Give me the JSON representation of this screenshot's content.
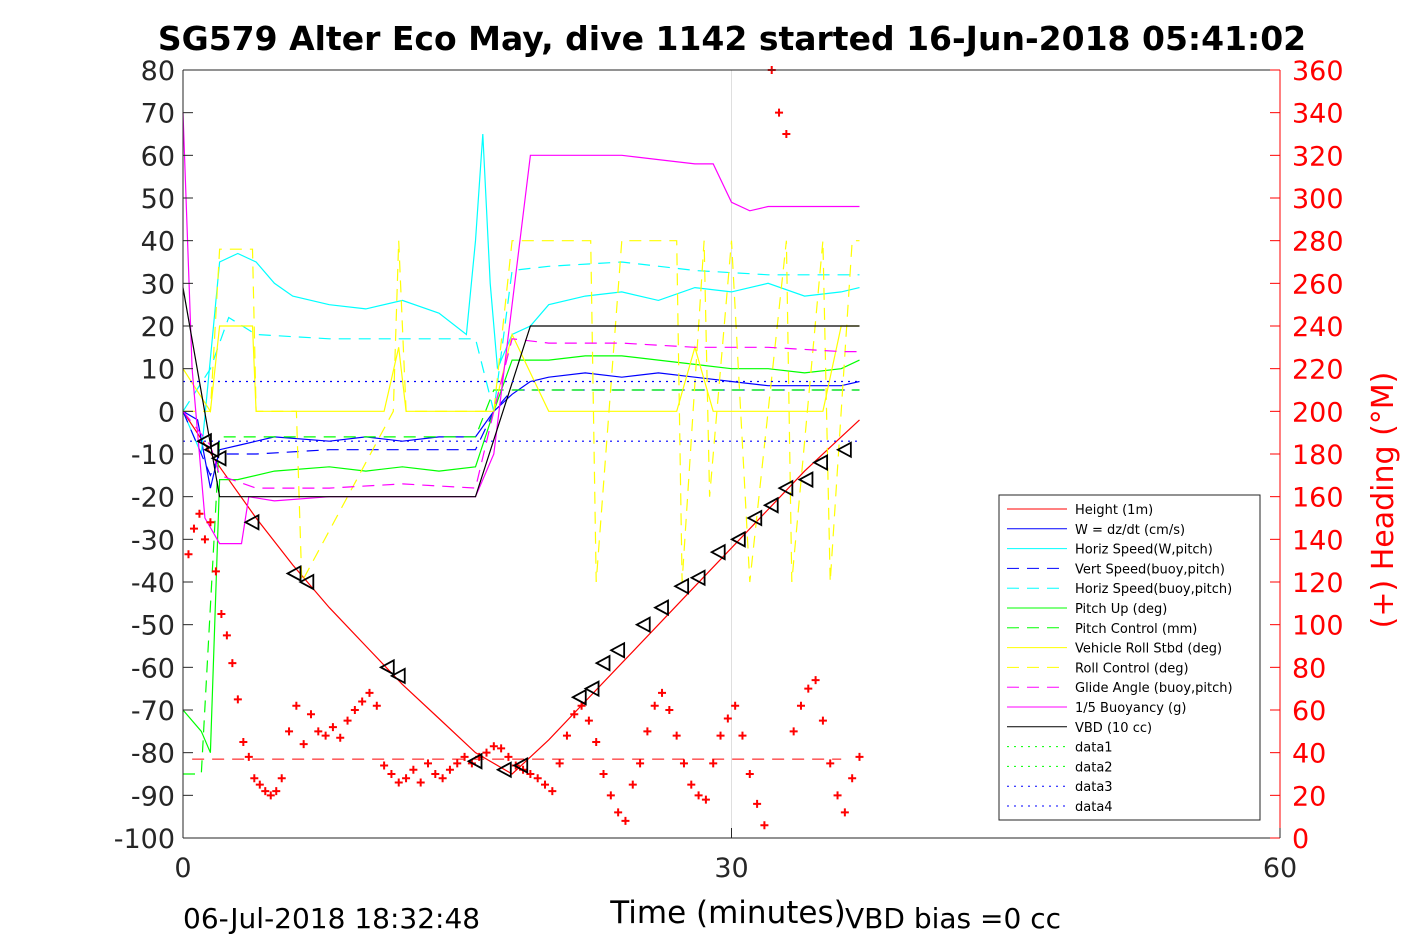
{
  "figure": {
    "title": "SG579 Alter Eco May, dive 1142 started 16-Jun-2018 05:41:02",
    "timestamp_label": "06-Jul-2018 18:32:48",
    "vbd_bias_label": "VBD bias =0 cc"
  },
  "chart_data": {
    "type": "line",
    "title": "SG579 Alter Eco May, dive 1142 started 16-Jun-2018 05:41:02",
    "xlabel": "Time (minutes)",
    "ylabel_left": "",
    "ylabel_right": "(+) Heading (°M)",
    "xlim": [
      0,
      60
    ],
    "ylim_left": [
      -100,
      80
    ],
    "ylim_right": [
      0,
      360
    ],
    "x_ticks": [
      "0",
      "30",
      "60"
    ],
    "y_ticks_left": [
      "80",
      "70",
      "60",
      "50",
      "40",
      "30",
      "20",
      "10",
      "0",
      "-10",
      "-20",
      "-30",
      "-40",
      "-50",
      "-60",
      "-70",
      "-80",
      "-90",
      "-100"
    ],
    "y_ticks_right": [
      "360",
      "340",
      "320",
      "300",
      "280",
      "260",
      "240",
      "220",
      "200",
      "180",
      "160",
      "140",
      "120",
      "100",
      "80",
      "60",
      "40",
      "20",
      "0"
    ],
    "grid": "x-only at 30",
    "legend_position": "lower-right",
    "colors": {
      "axis_right": "#ff0000",
      "background": "#ffffff"
    },
    "series": [
      {
        "name": "Height (1m)",
        "color": "#ff0000",
        "style": "solid",
        "x": [
          0,
          2,
          4,
          6,
          8,
          10,
          12,
          14,
          16,
          18,
          20,
          22,
          24,
          26,
          28,
          30,
          32,
          34,
          36,
          37
        ],
        "y": [
          0,
          -13,
          -25,
          -36,
          -46,
          -55,
          -64,
          -72,
          -80,
          -85,
          -77,
          -68,
          -59,
          -50,
          -41,
          -32,
          -23,
          -14,
          -6,
          -2
        ]
      },
      {
        "name": "W = dz/dt (cm/s)",
        "color": "#0000ff",
        "style": "solid",
        "x": [
          0,
          0.8,
          1.5,
          2,
          3,
          5,
          8,
          10,
          12,
          14,
          16,
          17,
          18,
          19,
          20,
          22,
          24,
          26,
          28,
          30,
          32,
          34,
          36,
          37
        ],
        "y": [
          0,
          -2,
          -18,
          -9,
          -8,
          -6,
          -7,
          -6,
          -7,
          -6,
          -6,
          0,
          4,
          7,
          8,
          9,
          8,
          9,
          8,
          7,
          6,
          6,
          6,
          7
        ]
      },
      {
        "name": "Horiz Speed(W,pitch)",
        "color": "#00ffff",
        "style": "solid",
        "x": [
          0,
          1,
          2,
          3,
          4,
          5,
          6,
          8,
          10,
          12,
          14,
          15.5,
          16,
          16.4,
          16.8,
          17.2,
          18,
          19,
          20,
          22,
          24,
          26,
          28,
          30,
          32,
          34,
          36,
          37
        ],
        "y": [
          0,
          -10,
          35,
          37,
          35,
          30,
          27,
          25,
          24,
          26,
          23,
          18,
          40,
          65,
          30,
          10,
          18,
          20,
          25,
          27,
          28,
          26,
          29,
          28,
          30,
          27,
          28,
          29
        ]
      },
      {
        "name": "Vert Speed(buoy,pitch)",
        "color": "#0000ff",
        "style": "dashed",
        "x": [
          0,
          1.5,
          2,
          4,
          8,
          12,
          16,
          17,
          18,
          20,
          24,
          28,
          32,
          36,
          37
        ],
        "y": [
          0,
          -15,
          -10,
          -10,
          -9,
          -9,
          -9,
          0,
          5,
          5,
          5,
          5,
          5,
          5,
          5
        ]
      },
      {
        "name": "Horiz Speed(buoy,pitch)",
        "color": "#00ffff",
        "style": "dashed",
        "x": [
          0,
          1.5,
          2.5,
          4,
          8,
          12,
          16,
          17,
          18,
          20,
          24,
          28,
          32,
          36,
          37
        ],
        "y": [
          0,
          10,
          22,
          18,
          17,
          17,
          17,
          0,
          33,
          34,
          35,
          33,
          32,
          32,
          32
        ]
      },
      {
        "name": "Pitch Up (deg)",
        "color": "#00ff00",
        "style": "solid",
        "x": [
          0,
          1,
          1.5,
          2,
          3,
          5,
          8,
          10,
          12,
          14,
          16,
          17,
          18,
          20,
          22,
          24,
          26,
          28,
          30,
          32,
          34,
          36,
          37
        ],
        "y": [
          -70,
          -75,
          -80,
          -16,
          -16,
          -14,
          -13,
          -14,
          -13,
          -14,
          -13,
          0,
          12,
          12,
          13,
          13,
          12,
          11,
          10,
          10,
          9,
          10,
          12
        ]
      },
      {
        "name": "Pitch Control (mm)",
        "color": "#00ff00",
        "style": "dashed",
        "x": [
          0,
          1,
          2,
          2.5,
          8,
          16,
          17,
          18,
          24,
          30,
          36,
          37
        ],
        "y": [
          -85,
          -85,
          -6,
          -6,
          -6,
          -6,
          5,
          5,
          5,
          5,
          5,
          5
        ]
      },
      {
        "name": "Vehicle Roll Stbd (deg)",
        "color": "#ffff00",
        "style": "solid",
        "x": [
          0,
          1.5,
          2,
          3,
          3.8,
          4,
          6,
          8,
          10,
          11,
          11.8,
          12.2,
          16,
          17,
          18,
          20,
          22,
          23,
          24,
          26,
          27,
          28,
          29,
          30,
          32,
          34,
          35,
          36,
          37
        ],
        "y": [
          10,
          0,
          20,
          20,
          20,
          0,
          0,
          0,
          0,
          0,
          15,
          0,
          0,
          0,
          18,
          0,
          0,
          0,
          0,
          0,
          0,
          15,
          0,
          0,
          0,
          0,
          0,
          20,
          20
        ]
      },
      {
        "name": "Roll Control (deg)",
        "color": "#ffff00",
        "style": "dashed",
        "x": [
          0,
          1.5,
          2,
          3.8,
          4,
          6.2,
          6.5,
          11.5,
          11.8,
          12.2,
          16,
          17,
          18,
          20,
          22.3,
          22.6,
          24,
          27,
          27.3,
          28.5,
          28.8,
          30,
          31,
          33,
          33.3,
          35,
          35.4,
          36.6,
          37
        ],
        "y": [
          0,
          0,
          38,
          38,
          0,
          0,
          -40,
          0,
          40,
          0,
          0,
          0,
          40,
          40,
          40,
          -40,
          40,
          40,
          -40,
          40,
          -20,
          40,
          -40,
          40,
          -40,
          40,
          -40,
          40,
          40
        ]
      },
      {
        "name": "Glide Angle (buoy,pitch)",
        "color": "#ff00ff",
        "style": "dashed",
        "x": [
          0,
          1.5,
          2,
          4,
          8,
          12,
          16,
          17,
          18,
          20,
          24,
          28,
          32,
          36,
          37
        ],
        "y": [
          0,
          -8,
          -15,
          -18,
          -18,
          -17,
          -18,
          0,
          17,
          16,
          16,
          15,
          15,
          14,
          14
        ]
      },
      {
        "name": "1/5 Buoyancy (g)",
        "color": "#ff00ff",
        "style": "solid",
        "x": [
          0,
          0.5,
          1.2,
          2,
          2.5,
          3.2,
          3.6,
          5,
          8,
          12,
          16,
          17,
          19,
          20,
          24,
          26,
          28,
          29,
          30,
          31,
          32,
          36,
          37
        ],
        "y": [
          70,
          10,
          -25,
          -31,
          -31,
          -31,
          -20,
          -21,
          -20,
          -20,
          -20,
          -10,
          60,
          60,
          60,
          59,
          58,
          58,
          49,
          47,
          48,
          48,
          48
        ]
      },
      {
        "name": "VBD (10 cc)",
        "color": "#000000",
        "style": "solid",
        "x": [
          0,
          2,
          16,
          19,
          20,
          37
        ],
        "y": [
          29,
          -20,
          -20,
          20,
          20,
          20
        ]
      },
      {
        "name": "data1",
        "color": "#00ff00",
        "style": "dotted",
        "x": [],
        "y": []
      },
      {
        "name": "data2",
        "color": "#00ff00",
        "style": "dotted",
        "x": [],
        "y": []
      },
      {
        "name": "data3",
        "color": "#0000ff",
        "style": "dotted",
        "x": [
          0,
          37
        ],
        "y": [
          7,
          7
        ]
      },
      {
        "name": "data4",
        "color": "#0000ff",
        "style": "dotted",
        "x": [
          0,
          37
        ],
        "y": [
          -7,
          -7
        ]
      }
    ],
    "reference_lines": [
      {
        "color": "#ff0000",
        "style": "dashed",
        "y": -81.5,
        "x": [
          0.5,
          36
        ]
      }
    ],
    "heading_points": {
      "color": "#ff0000",
      "marker": "+",
      "axis": "right",
      "x": [
        0.3,
        0.6,
        0.9,
        1.2,
        1.5,
        1.8,
        2.1,
        2.4,
        2.7,
        3.0,
        3.3,
        3.6,
        3.9,
        4.2,
        4.5,
        4.8,
        5.1,
        5.4,
        5.8,
        6.2,
        6.6,
        7.0,
        7.4,
        7.8,
        8.2,
        8.6,
        9.0,
        9.4,
        9.8,
        10.2,
        10.6,
        11.0,
        11.4,
        11.8,
        12.2,
        12.6,
        13.0,
        13.4,
        13.8,
        14.2,
        14.6,
        15.0,
        15.4,
        15.8,
        16.2,
        16.6,
        17.0,
        17.4,
        17.8,
        18.2,
        18.6,
        19.0,
        19.4,
        19.8,
        20.2,
        20.6,
        21.0,
        21.4,
        21.8,
        22.2,
        22.6,
        23.0,
        23.4,
        23.8,
        24.2,
        24.6,
        25.0,
        25.4,
        25.8,
        26.2,
        26.6,
        27.0,
        27.4,
        27.8,
        28.2,
        28.6,
        29.0,
        29.4,
        29.8,
        30.2,
        30.6,
        31.0,
        31.4,
        31.8,
        32.2,
        32.6,
        33.0,
        33.4,
        33.8,
        34.2,
        34.6,
        35.0,
        35.4,
        35.8,
        36.2,
        36.6,
        37.0
      ],
      "y": [
        133,
        145,
        152,
        140,
        148,
        125,
        105,
        95,
        82,
        65,
        45,
        38,
        28,
        25,
        22,
        20,
        22,
        28,
        50,
        62,
        44,
        58,
        50,
        48,
        52,
        47,
        55,
        60,
        64,
        68,
        62,
        34,
        30,
        26,
        28,
        32,
        26,
        35,
        30,
        28,
        32,
        35,
        38,
        35,
        38,
        40,
        43,
        42,
        38,
        34,
        32,
        30,
        28,
        25,
        22,
        35,
        48,
        58,
        62,
        55,
        45,
        30,
        20,
        12,
        8,
        25,
        35,
        50,
        62,
        68,
        60,
        48,
        35,
        25,
        20,
        18,
        35,
        48,
        56,
        62,
        48,
        30,
        16,
        6,
        360,
        340,
        330,
        50,
        62,
        70,
        74,
        55,
        35,
        20,
        12,
        28,
        38
      ]
    },
    "profile_markers": {
      "color": "#000000",
      "marker": "triangle",
      "x": [
        1.2,
        1.6,
        2.0,
        3.8,
        6.1,
        6.8,
        11.2,
        11.8,
        16.0,
        17.6,
        18.5,
        21.7,
        22.4,
        23.0,
        23.8,
        25.2,
        26.2,
        27.3,
        28.2,
        29.3,
        30.4,
        31.3,
        32.2,
        33.0,
        34.1,
        34.9,
        36.2
      ],
      "y": [
        -7,
        -9,
        -11,
        -26,
        -38,
        -40,
        -60,
        -62,
        -82,
        -84,
        -83,
        -67,
        -65,
        -59,
        -56,
        -50,
        -46,
        -41,
        -39,
        -33,
        -30,
        -25,
        -22,
        -18,
        -16,
        -12,
        -9
      ]
    }
  }
}
